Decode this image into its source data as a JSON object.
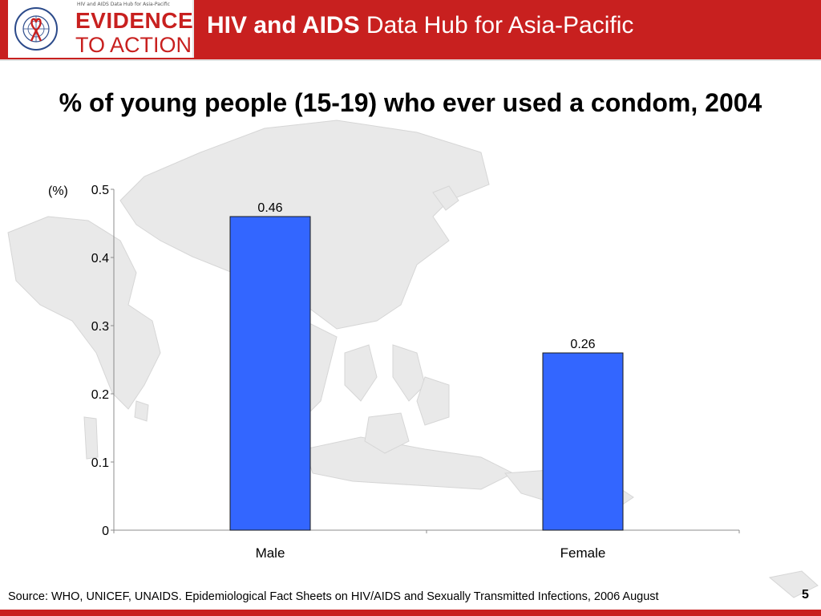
{
  "header": {
    "logo_hub_text": "HIV and AIDS Data Hub for Asia-Pacific",
    "logo_line1": "EVIDENCE",
    "logo_line2": "TO ACTION",
    "title_bold": "HIV and AIDS",
    "title_rest": " Data Hub for Asia-Pacific"
  },
  "chart_title": "% of young people (15-19) who ever used a condom, 2004",
  "chart_data": {
    "type": "bar",
    "title": "% of young people (15-19) who ever used a condom, 2004",
    "categories": [
      "Male",
      "Female"
    ],
    "values": [
      0.46,
      0.26
    ],
    "data_labels": [
      "0.46",
      "0.26"
    ],
    "ylabel": "(%)",
    "xlabel": "",
    "ylim": [
      0,
      0.5
    ],
    "yticks": [
      "0",
      "0.1",
      "0.2",
      "0.3",
      "0.4",
      "0.5"
    ],
    "grid": false,
    "legend": "none",
    "bar_color": "#3366ff"
  },
  "source": "Source: WHO, UNICEF, UNAIDS. Epidemiological Fact Sheets on HIV/AIDS and Sexually Transmitted Infections, 2006 August",
  "slide_number": "5",
  "colors": {
    "brand_red": "#c8201f",
    "bar": "#3366ff",
    "map": "#e9e9e9"
  }
}
